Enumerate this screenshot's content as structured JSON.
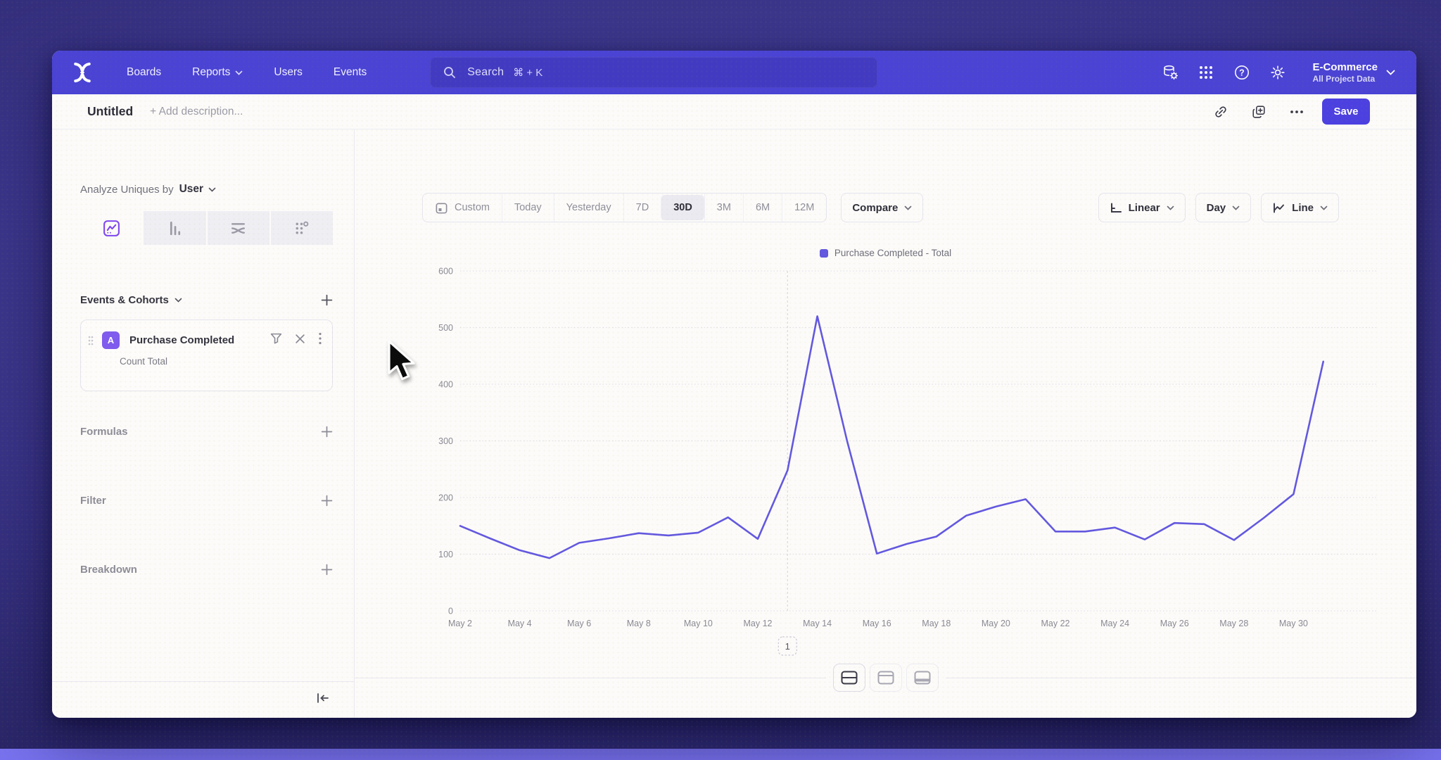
{
  "nav": {
    "items": [
      {
        "label": "Boards",
        "chevron": false
      },
      {
        "label": "Reports",
        "chevron": true
      },
      {
        "label": "Users",
        "chevron": false
      },
      {
        "label": "Events",
        "chevron": false
      }
    ],
    "search": {
      "placeholder": "Search",
      "shortcut": "⌘ + K"
    },
    "project": {
      "name": "E-Commerce",
      "subtitle": "All Project Data"
    }
  },
  "glyphs": {
    "help": "?"
  },
  "header": {
    "title": "Untitled",
    "description_placeholder": "+ Add description...",
    "save_label": "Save"
  },
  "sidebar": {
    "analyze_prefix": "Analyze Uniques by",
    "analyze_value": "User",
    "events_section_label": "Events & Cohorts",
    "event_card": {
      "badge": "A",
      "title": "Purchase Completed",
      "subtitle": "Count Total"
    },
    "sections": [
      "Formulas",
      "Filter",
      "Breakdown"
    ]
  },
  "toolbar": {
    "ranges": [
      "Custom",
      "Today",
      "Yesterday",
      "7D",
      "30D",
      "3M",
      "6M",
      "12M"
    ],
    "active_range": "30D",
    "compare_label": "Compare",
    "scale_label": "Linear",
    "interval_label": "Day",
    "chart_type_label": "Line"
  },
  "chart_data": {
    "type": "line",
    "title": "",
    "legend_position": "top",
    "grid": true,
    "ylim": [
      0,
      600
    ],
    "yticks": [
      0,
      100,
      200,
      300,
      400,
      500,
      600
    ],
    "x": [
      "May 2",
      "May 3",
      "May 4",
      "May 5",
      "May 6",
      "May 7",
      "May 8",
      "May 9",
      "May 10",
      "May 11",
      "May 12",
      "May 13",
      "May 14",
      "May 15",
      "May 16",
      "May 17",
      "May 18",
      "May 19",
      "May 20",
      "May 21",
      "May 22",
      "May 23",
      "May 24",
      "May 25",
      "May 26",
      "May 27",
      "May 28",
      "May 29",
      "May 30",
      "May 31"
    ],
    "x_tick_step": 2,
    "series": [
      {
        "name": "Purchase Completed - Total",
        "color": "#6358df",
        "values": [
          150,
          128,
          107,
          93,
          120,
          128,
          137,
          133,
          138,
          165,
          127,
          248,
          520,
          300,
          101,
          118,
          131,
          168,
          184,
          197,
          140,
          140,
          147,
          126,
          155,
          153,
          125,
          164,
          206,
          440
        ]
      }
    ],
    "annotation": {
      "x": "May 13",
      "label": "1"
    }
  },
  "colors": {
    "nav": "#4a43d4",
    "accent": "#4c40e0",
    "line": "#6358df",
    "badge": "#7f5bee",
    "active_tab_icon": "#7f46ee"
  }
}
